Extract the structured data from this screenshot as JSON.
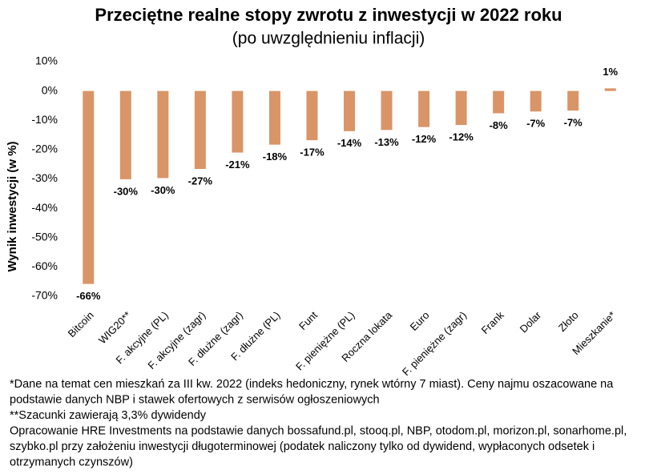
{
  "chart_data": {
    "type": "bar",
    "title": "Przeciętne realne stopy zwrotu z inwestycji w 2022 roku",
    "subtitle": "(po uwzględnieniu inflacji)",
    "y_label": "Wynik inwestycji (w %)",
    "categories": [
      "Bitcoin",
      "WIG20**",
      "F. akcyjne (PL)",
      "F. akcyjne (zagr)",
      "F. dłużne (zagr)",
      "F. dłużne (PL)",
      "Funt",
      "F. pieniężne (PL)",
      "Roczna lokata",
      "Euro",
      "F. pieniężne (zagr)",
      "Frank",
      "Dolar",
      "Złoto",
      "Mieszkanie*"
    ],
    "values": [
      -65.8,
      -30.1,
      -29.7,
      -26.6,
      -21.0,
      -18.3,
      -16.8,
      -13.7,
      -13.3,
      -12.3,
      -11.6,
      -7.6,
      -7.0,
      -6.7,
      0.9
    ],
    "value_labels": [
      "-66%",
      "-30%",
      "-30%",
      "-27%",
      "-21%",
      "-18%",
      "-17%",
      "-14%",
      "-13%",
      "-12%",
      "-12%",
      "-8%",
      "-7%",
      "-7%",
      "1%"
    ],
    "color": "#d99567",
    "ylim": [
      -70,
      10
    ],
    "yticks": [
      {
        "value": 10,
        "label": "10%"
      },
      {
        "value": 0,
        "label": "0%"
      },
      {
        "value": -10,
        "label": "-10%"
      },
      {
        "value": -20,
        "label": "-20%"
      },
      {
        "value": -30,
        "label": "-30%"
      },
      {
        "value": -40,
        "label": "-40%"
      },
      {
        "value": -50,
        "label": "-50%"
      },
      {
        "value": -60,
        "label": "-60%"
      },
      {
        "value": -70,
        "label": "-70%"
      }
    ],
    "grid": false,
    "notes": [
      "*Dane na temat cen mieszkań za III kw. 2022 (indeks hedoniczny, rynek wtórny 7 miast). Ceny najmu oszacowane na",
      "podstawie danych NBP i stawek ofertowych z serwisów ogłoszeniowych",
      "**Szacunki zawierają 3,3% dywidendy",
      "Opracowanie HRE Investments na podstawie danych bossafund.pl, stooq.pl, NBP, otodom.pl, morizon.pl, sonarhome.pl,",
      "szybko.pl przy założeniu inwestycji długoterminowej (podatek naliczony tylko od dywidend, wypłaconych odsetek i",
      "otrzymanych czynszów)"
    ]
  }
}
